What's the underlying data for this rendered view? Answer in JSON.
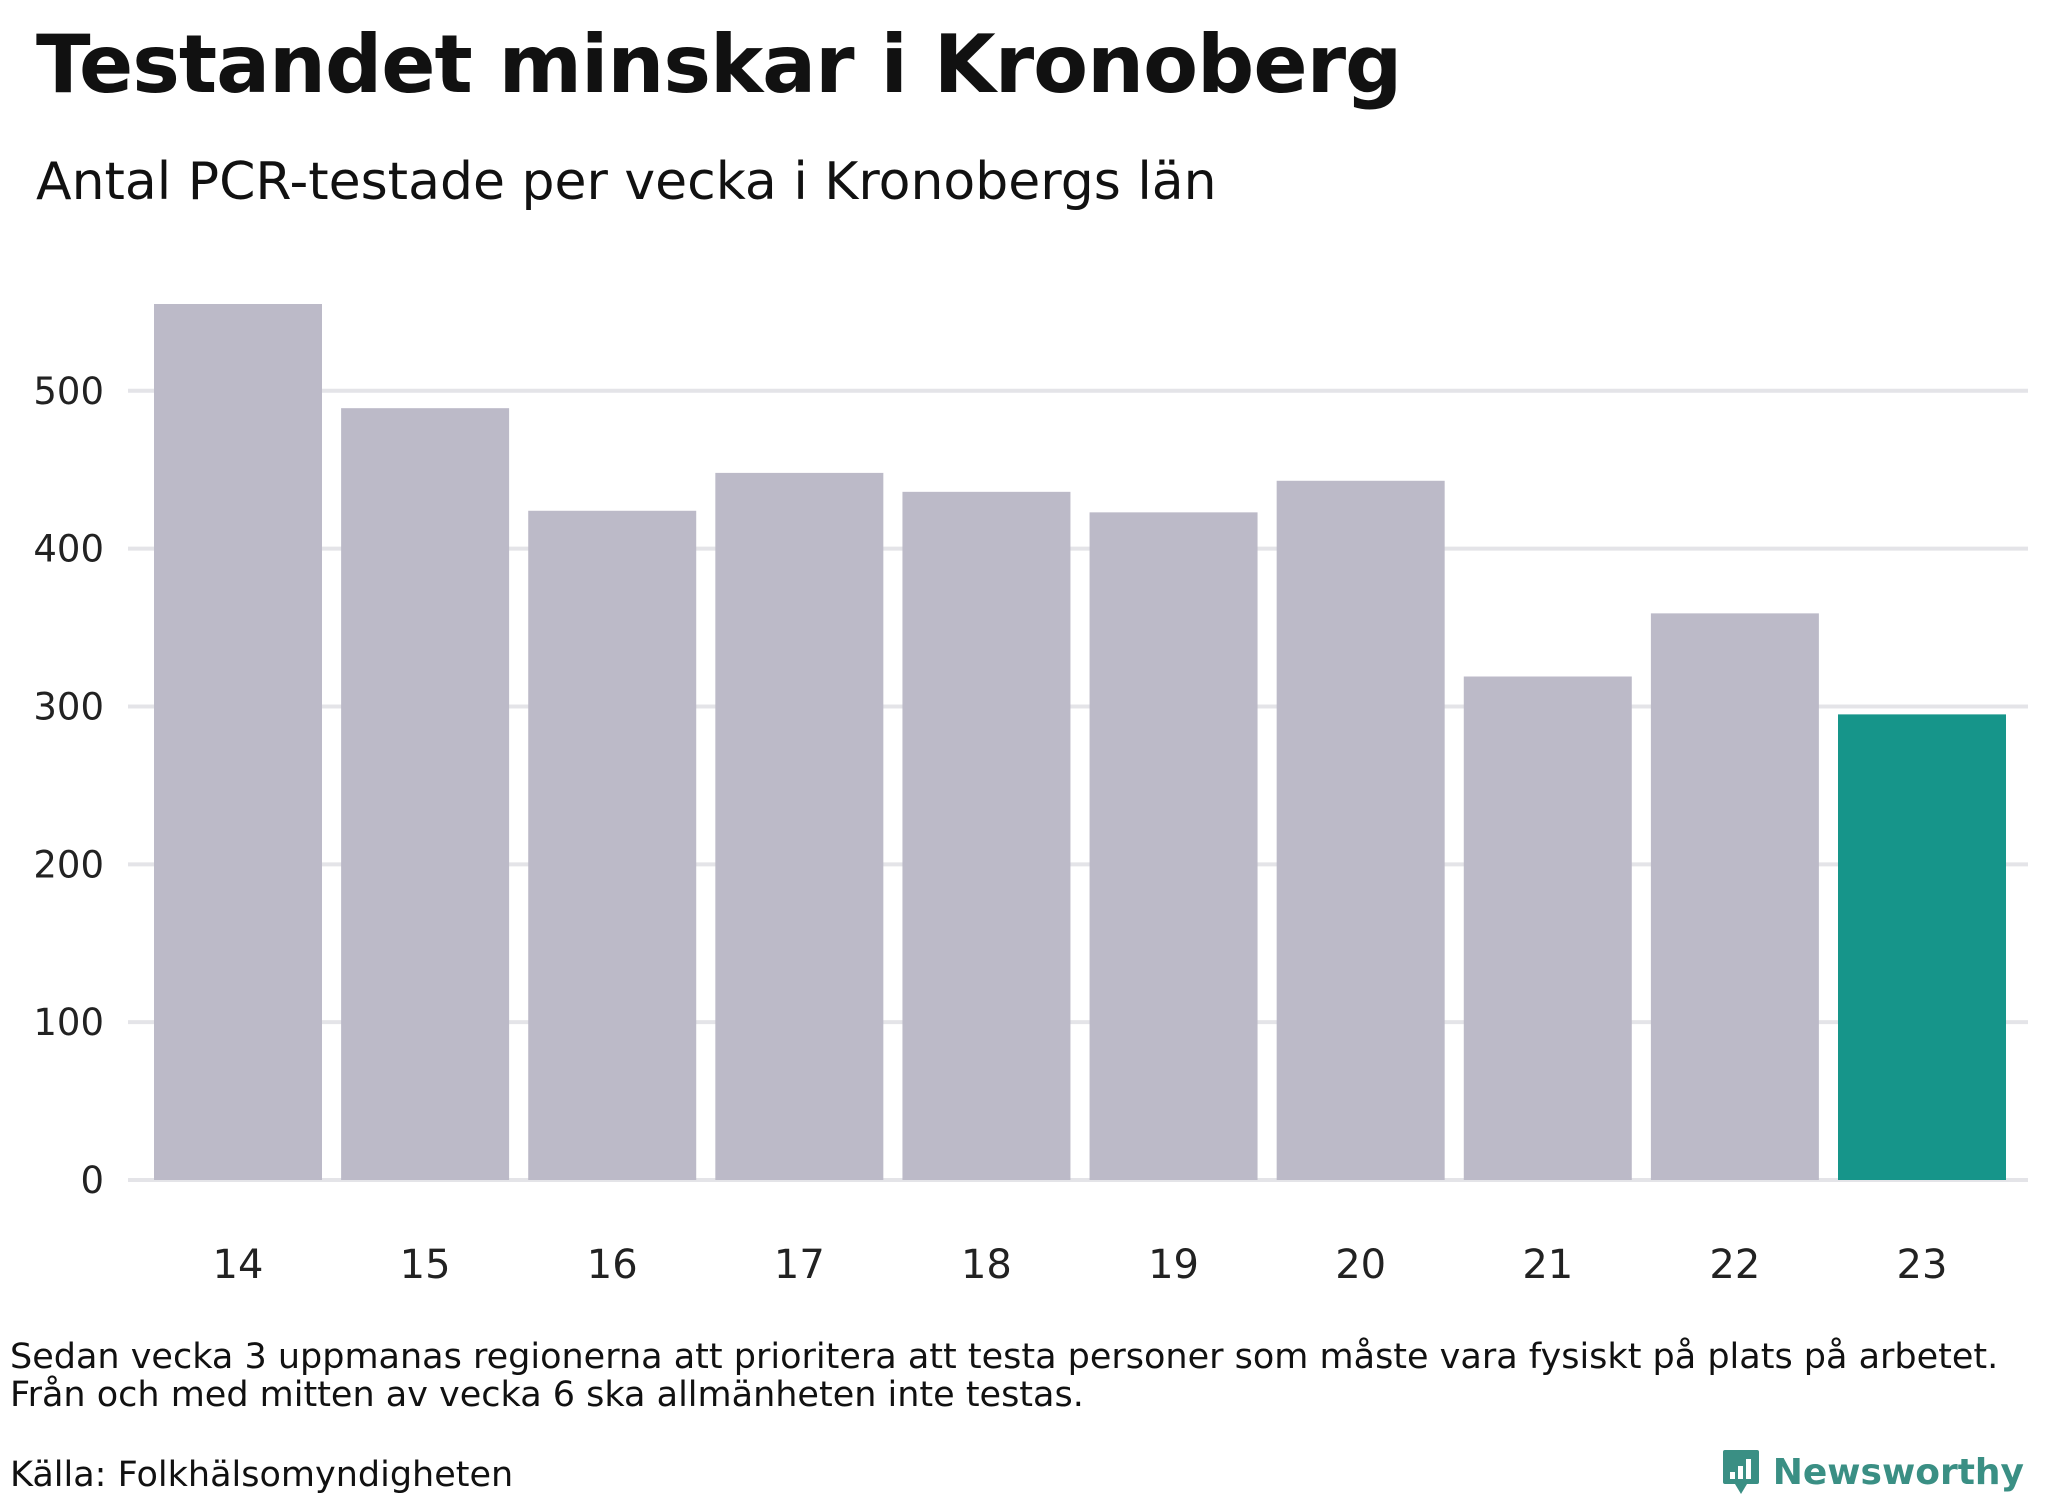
{
  "header": {
    "title": "Testandet minskar i Kronoberg",
    "subtitle": "Antal PCR-testade per vecka i Kronobergs län"
  },
  "chart_data": {
    "type": "bar",
    "categories": [
      "14",
      "15",
      "16",
      "17",
      "18",
      "19",
      "20",
      "21",
      "22",
      "23"
    ],
    "values": [
      555,
      489,
      424,
      448,
      436,
      423,
      443,
      319,
      359,
      295
    ],
    "highlight_index": 9,
    "bar_color": "#bcbac8",
    "highlight_color": "#16958a",
    "ylim": [
      0,
      555
    ],
    "yticks": [
      0,
      100,
      200,
      300,
      400,
      500
    ],
    "grid": true
  },
  "footer": {
    "note_lines": [
      "Sedan vecka 3 uppmanas regionerna att prioritera att testa personer som måste vara fysiskt på plats på arbetet.",
      "Från och med mitten av vecka 6 ska allmänheten inte testas."
    ],
    "source": "Källa: Folkhälsomyndigheten",
    "brand": {
      "name": "Newsworthy",
      "color": "#3a8f84",
      "icon": "newsworthy-logo-icon"
    }
  }
}
